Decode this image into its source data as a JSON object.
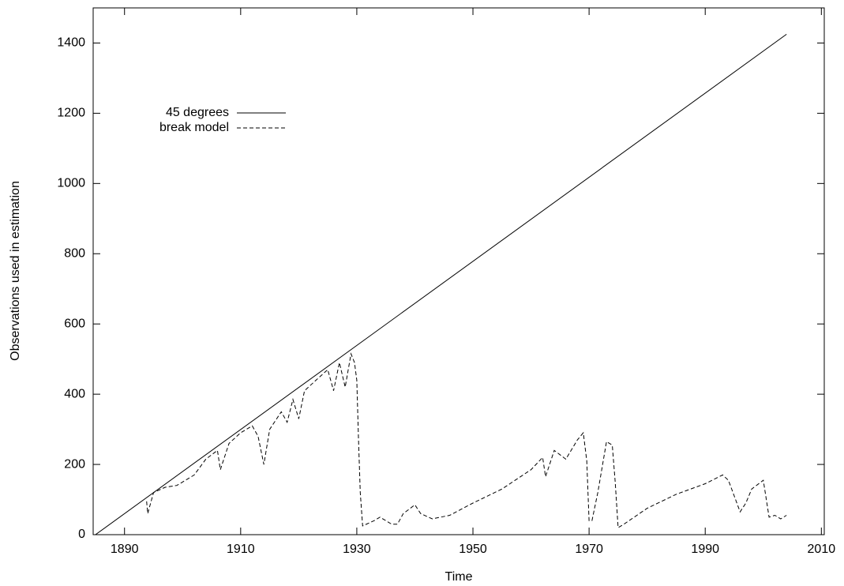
{
  "chart_data": {
    "type": "line",
    "x_label": "Time",
    "y_label": "Observations used in estimation",
    "xlim": [
      1884.6,
      2010.5
    ],
    "ylim": [
      0,
      1500
    ],
    "xticks": [
      1890,
      1910,
      1930,
      1950,
      1970,
      1990,
      2010
    ],
    "yticks": [
      0,
      200,
      400,
      600,
      800,
      1000,
      1200,
      1400
    ],
    "legend": "upper left",
    "series": [
      {
        "name": "45 degrees",
        "color": "#000000",
        "dash": "solid",
        "x": [
          1885,
          2004
        ],
        "values": [
          0,
          1425
        ]
      },
      {
        "name": "break model",
        "color": "#000000",
        "dash": "dashed",
        "x": [
          1893.8,
          1894,
          1895,
          1897,
          1899,
          1900,
          1902,
          1904,
          1906,
          1906.5,
          1908,
          1910,
          1912,
          1913,
          1914,
          1915,
          1917,
          1918,
          1919,
          1920,
          1921,
          1923,
          1925,
          1926,
          1927,
          1928,
          1929,
          1929.6,
          1930,
          1930.3,
          1930.6,
          1931,
          1933,
          1934,
          1936,
          1937,
          1938,
          1940,
          1941,
          1943,
          1946,
          1950,
          1955,
          1960,
          1962,
          1962.5,
          1964,
          1966,
          1968,
          1969,
          1969.6,
          1970,
          1970.5,
          1971.5,
          1973,
          1974,
          1974.5,
          1975,
          1976,
          1980,
          1985,
          1990,
          1993,
          1994,
          1996,
          1997,
          1998,
          2000,
          2001,
          2002,
          2003,
          2004
        ],
        "values": [
          95,
          60,
          120,
          135,
          140,
          150,
          170,
          215,
          240,
          185,
          260,
          290,
          310,
          280,
          200,
          300,
          350,
          320,
          385,
          330,
          410,
          440,
          470,
          410,
          490,
          420,
          515,
          490,
          440,
          270,
          120,
          25,
          40,
          50,
          30,
          30,
          60,
          85,
          60,
          45,
          55,
          90,
          130,
          185,
          220,
          165,
          240,
          215,
          270,
          290,
          210,
          40,
          40,
          120,
          265,
          255,
          150,
          20,
          30,
          75,
          115,
          145,
          170,
          155,
          65,
          90,
          130,
          155,
          50,
          55,
          45,
          55
        ]
      }
    ]
  }
}
